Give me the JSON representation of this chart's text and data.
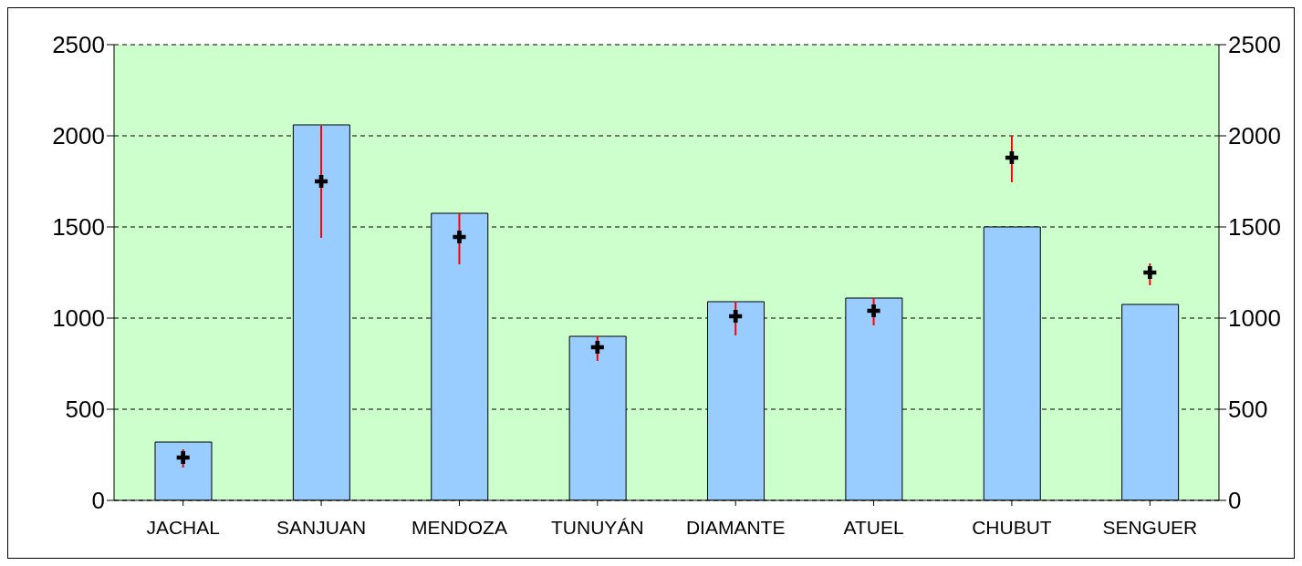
{
  "chart_data": {
    "type": "bar",
    "categories": [
      "JACHAL",
      "SANJUAN",
      "MENDOZA",
      "TUNUYÁN",
      "DIAMANTE",
      "ATUEL",
      "CHUBUT",
      "SENGUER"
    ],
    "series": [
      {
        "type": "bar",
        "color": "#99ccff",
        "values": [
          320,
          2060,
          1575,
          900,
          1090,
          1110,
          1500,
          1075
        ]
      },
      {
        "type": "scatter",
        "color": "#000000",
        "x": [
          "JACHAL",
          "SANJUAN",
          "MENDOZA",
          "TUNUYÁN",
          "DIAMANTE",
          "ATUEL",
          "CHUBUT",
          "SENGUER"
        ],
        "values": [
          235,
          1750,
          1445,
          840,
          1010,
          1040,
          1880,
          1250
        ],
        "errors": [
          [
            180,
            280
          ],
          [
            1440,
            2055
          ],
          [
            1295,
            1575
          ],
          [
            765,
            900
          ],
          [
            905,
            1090
          ],
          [
            960,
            1110
          ],
          [
            1745,
            2000
          ],
          [
            1180,
            1300
          ]
        ]
      }
    ],
    "ylim": [
      0,
      2500
    ],
    "yticks": [
      0,
      500,
      1000,
      1500,
      2000,
      2500
    ],
    "y2lim": [
      0,
      2500
    ],
    "y2ticks": [
      0,
      500,
      1000,
      1500,
      2000,
      2500
    ],
    "grid": "y",
    "marker": "cross"
  }
}
